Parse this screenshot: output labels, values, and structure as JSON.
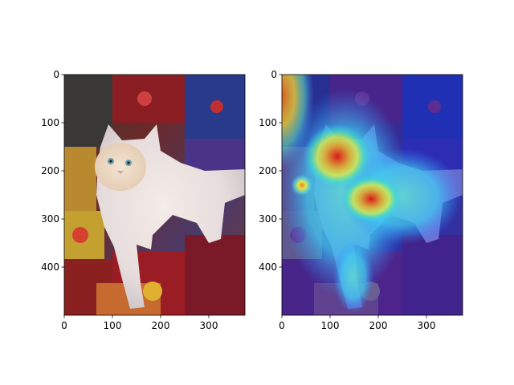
{
  "chart_data": [
    {
      "type": "image",
      "xlim": [
        0,
        375
      ],
      "ylim": [
        500,
        0
      ],
      "x_ticks": [
        "0",
        "100",
        "200",
        "300"
      ],
      "y_ticks": [
        "0",
        "100",
        "200",
        "300",
        "400"
      ],
      "x_tick_values": [
        0,
        100,
        200,
        300
      ],
      "y_tick_values": [
        0,
        100,
        200,
        300,
        400
      ],
      "content": "photo"
    },
    {
      "type": "heatmap",
      "xlim": [
        0,
        375
      ],
      "ylim": [
        500,
        0
      ],
      "x_ticks": [
        "0",
        "100",
        "200",
        "300"
      ],
      "y_ticks": [
        "0",
        "100",
        "200",
        "300",
        "400"
      ],
      "x_tick_values": [
        0,
        100,
        200,
        300
      ],
      "y_tick_values": [
        0,
        100,
        200,
        300,
        400
      ],
      "colormap": "jet",
      "content": "photo-with-heatmap-overlay",
      "hotspots": [
        {
          "x": 135,
          "y": 185,
          "level": 1.0
        },
        {
          "x": 185,
          "y": 260,
          "level": 0.9
        },
        {
          "x": 40,
          "y": 230,
          "level": 0.7
        },
        {
          "x": 10,
          "y": 50,
          "level": 0.8
        }
      ]
    }
  ]
}
